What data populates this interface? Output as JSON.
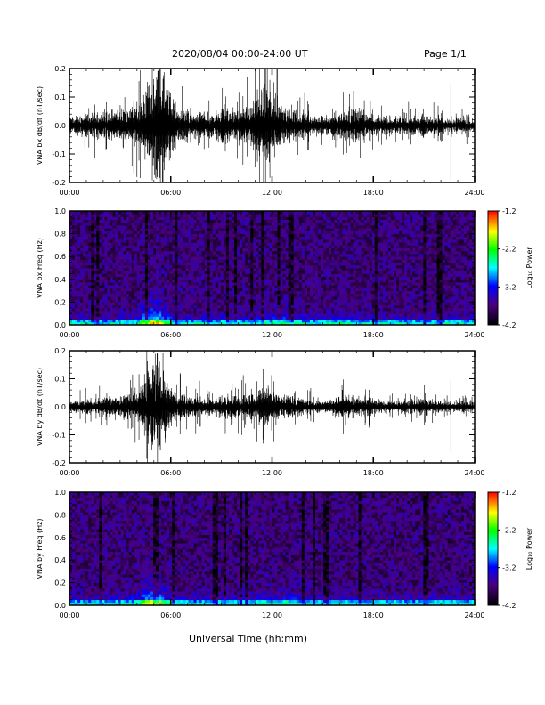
{
  "header": {
    "date_range": "2020/08/04  00:00-24:00 UT",
    "page": "Page 1/1"
  },
  "x_axis_label": "Universal Time (hh:mm)",
  "time_ticks": [
    "00:00",
    "06:00",
    "12:00",
    "18:00",
    "24:00"
  ],
  "colors": {
    "spectrogram_scale": [
      "#000000",
      "#4b0082",
      "#0000ff",
      "#00ffff",
      "#00ff00",
      "#ffff00",
      "#ff0000"
    ]
  },
  "chart_data": [
    {
      "id": "bx-waveform",
      "type": "line",
      "ylabel": "VNA bx dB/dt (nT/sec)",
      "xlim_hours": [
        0,
        24
      ],
      "ylim": [
        -0.2,
        0.2
      ],
      "y_ticks": [
        -0.2,
        -0.1,
        0.0,
        0.1,
        0.2
      ],
      "y_tick_labels": [
        "-0.2",
        "-0.1",
        "0.0",
        "0.1",
        "0.2"
      ],
      "series": [
        {
          "envelope_hours": [
            0,
            1,
            2,
            3,
            4,
            4.5,
            5,
            5.5,
            6,
            6.5,
            7,
            8,
            9,
            10,
            11,
            11.5,
            12,
            12.5,
            13,
            14,
            15,
            16,
            17,
            18,
            19,
            20,
            21,
            22,
            22.5,
            23,
            24
          ],
          "envelope_amplitude": [
            0.03,
            0.04,
            0.05,
            0.05,
            0.07,
            0.12,
            0.22,
            0.22,
            0.12,
            0.06,
            0.05,
            0.04,
            0.06,
            0.05,
            0.08,
            0.14,
            0.1,
            0.07,
            0.06,
            0.04,
            0.03,
            0.05,
            0.06,
            0.04,
            0.03,
            0.03,
            0.04,
            0.03,
            0.02,
            0.03,
            0.02
          ],
          "spikes": [
            {
              "t": 11.6,
              "v": 0.2
            },
            {
              "t": 12.3,
              "v": 0.2
            },
            {
              "t": 22.6,
              "v": -0.19
            },
            {
              "t": 22.6,
              "v": 0.15
            }
          ]
        }
      ]
    },
    {
      "id": "bx-spectrogram",
      "type": "heatmap",
      "ylabel": "VNA bx Freq (Hz)",
      "xlim_hours": [
        0,
        24
      ],
      "ylim": [
        0,
        1.0
      ],
      "y_ticks": [
        0.0,
        0.2,
        0.4,
        0.6,
        0.8,
        1.0
      ],
      "y_tick_labels": [
        "0.0",
        "0.2",
        "0.4",
        "0.6",
        "0.8",
        "1.0"
      ],
      "colorbar_label": "Log₁₀ Power",
      "colorbar_range": [
        -4.2,
        -1.2
      ],
      "colorbar_ticks": [
        "-1.2",
        "-2.2",
        "-3.2",
        "-4.2"
      ],
      "hot_spots": [
        {
          "t": 5.0,
          "f": 0.02,
          "power": -1.4
        },
        {
          "t": 5.0,
          "f": 0.15,
          "power": -2.8
        }
      ]
    },
    {
      "id": "by-waveform",
      "type": "line",
      "ylabel": "VNA by dB/dt (nT/sec)",
      "xlim_hours": [
        0,
        24
      ],
      "ylim": [
        -0.2,
        0.2
      ],
      "y_ticks": [
        -0.2,
        -0.1,
        0.0,
        0.1,
        0.2
      ],
      "y_tick_labels": [
        "-0.2",
        "-0.1",
        "0.0",
        "0.1",
        "0.2"
      ],
      "series": [
        {
          "envelope_hours": [
            0,
            1,
            2,
            3,
            4,
            4.5,
            5,
            5.5,
            6,
            6.5,
            7,
            8,
            9,
            10,
            11,
            11.5,
            12,
            12.5,
            13,
            14,
            15,
            16,
            17,
            18,
            19,
            20,
            21,
            22,
            22.5,
            23,
            24
          ],
          "envelope_amplitude": [
            0.02,
            0.03,
            0.03,
            0.04,
            0.05,
            0.1,
            0.17,
            0.14,
            0.08,
            0.05,
            0.04,
            0.03,
            0.04,
            0.04,
            0.05,
            0.07,
            0.07,
            0.05,
            0.04,
            0.03,
            0.02,
            0.04,
            0.04,
            0.03,
            0.02,
            0.02,
            0.03,
            0.02,
            0.02,
            0.02,
            0.02
          ],
          "spikes": [
            {
              "t": 5.2,
              "v": 0.19
            },
            {
              "t": 22.6,
              "v": -0.16
            },
            {
              "t": 22.6,
              "v": 0.1
            }
          ]
        }
      ]
    },
    {
      "id": "by-spectrogram",
      "type": "heatmap",
      "ylabel": "VNA by Freq (Hz)",
      "xlim_hours": [
        0,
        24
      ],
      "ylim": [
        0,
        1.0
      ],
      "y_ticks": [
        0.0,
        0.2,
        0.4,
        0.6,
        0.8,
        1.0
      ],
      "y_tick_labels": [
        "0.0",
        "0.2",
        "0.4",
        "0.6",
        "0.8",
        "1.0"
      ],
      "colorbar_label": "Log₁₀ Power",
      "colorbar_range": [
        -4.2,
        -1.2
      ],
      "colorbar_ticks": [
        "-1.2",
        "-2.2",
        "-3.2",
        "-4.2"
      ],
      "hot_spots": [
        {
          "t": 5.0,
          "f": 0.02,
          "power": -1.8
        },
        {
          "t": 5.0,
          "f": 0.15,
          "power": -2.6
        }
      ]
    }
  ]
}
